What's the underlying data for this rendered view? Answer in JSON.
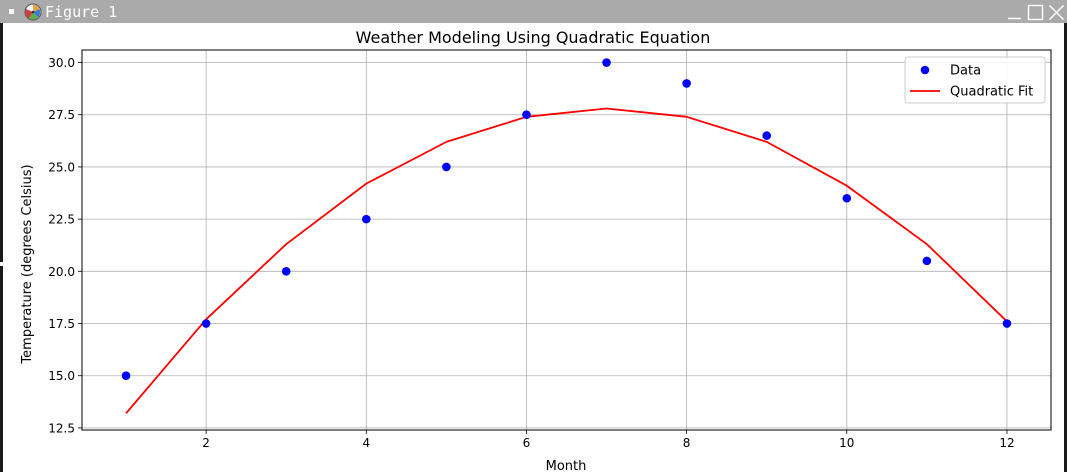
{
  "window": {
    "title": "Figure 1",
    "titlebar_color": "#aaaaaa",
    "title_color": "#ffffff"
  },
  "icons": {
    "app": "matplotlib-logo-icon",
    "system_menu": "window-menu-icon",
    "minimize": "minimize-icon",
    "maximize": "maximize-icon",
    "close": "close-icon"
  },
  "chart_data": {
    "type": "scatter",
    "title": "Weather Modeling Using Quadratic Equation",
    "xlabel": "Month",
    "ylabel": "Temperature (degrees Celsius)",
    "xlim": [
      0.45,
      12.55
    ],
    "ylim": [
      12.4,
      30.6
    ],
    "xticks": [
      2,
      4,
      6,
      8,
      10,
      12
    ],
    "yticks": [
      12.5,
      15.0,
      17.5,
      20.0,
      22.5,
      25.0,
      27.5,
      30.0
    ],
    "xtick_labels": [
      "2",
      "4",
      "6",
      "8",
      "10",
      "12"
    ],
    "ytick_labels": [
      "12.5",
      "15.0",
      "17.5",
      "20.0",
      "22.5",
      "25.0",
      "27.5",
      "30.0"
    ],
    "grid": true,
    "legend_position": "top-right",
    "series": [
      {
        "name": "Data",
        "kind": "scatter",
        "color": "#0000ff",
        "x": [
          1,
          2,
          3,
          4,
          5,
          6,
          7,
          8,
          9,
          10,
          11,
          12
        ],
        "y": [
          15.0,
          17.5,
          20.0,
          22.5,
          25.0,
          27.5,
          30.0,
          29.0,
          26.5,
          23.5,
          20.5,
          17.5
        ]
      },
      {
        "name": "Quadratic Fit",
        "kind": "line",
        "color": "#ff0000",
        "x": [
          1,
          2,
          3,
          4,
          5,
          6,
          7,
          8,
          9,
          10,
          11,
          12
        ],
        "y": [
          13.2,
          17.7,
          21.3,
          24.2,
          26.2,
          27.4,
          27.8,
          27.4,
          26.2,
          24.1,
          21.3,
          17.6
        ]
      }
    ]
  }
}
